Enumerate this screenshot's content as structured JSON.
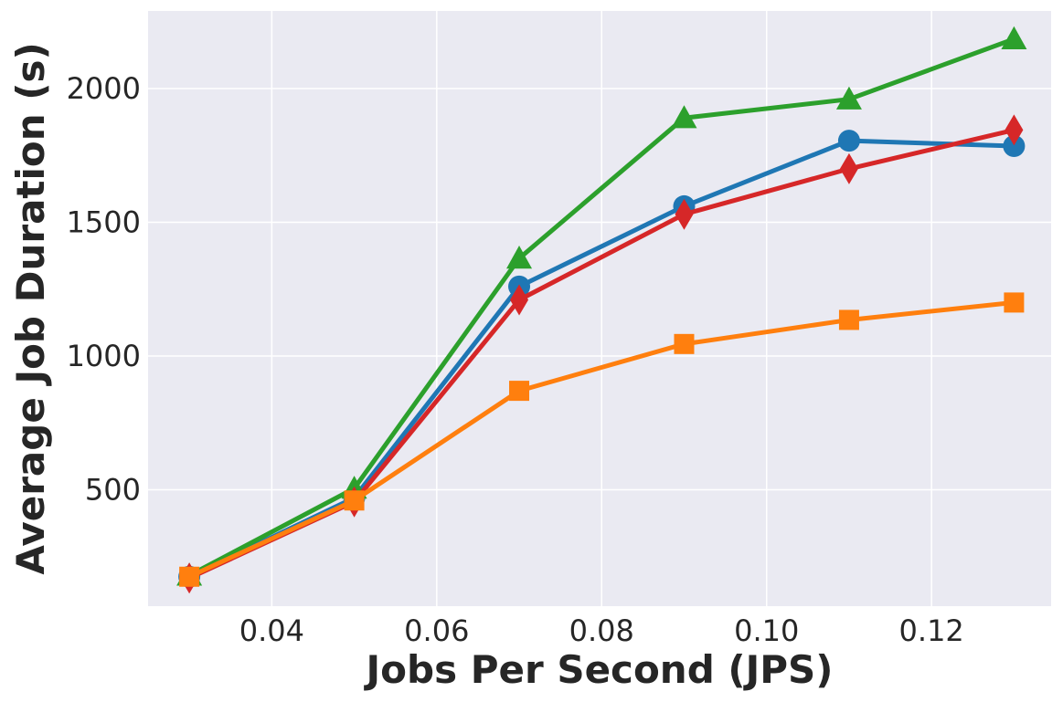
{
  "chart_data": {
    "type": "line",
    "title": "",
    "xlabel": "Jobs Per Second (JPS)",
    "ylabel": "Average Job Duration (s)",
    "xlim": [
      0.025,
      0.1345
    ],
    "ylim": [
      65,
      2290
    ],
    "xticks": [
      0.04,
      0.06,
      0.08,
      0.1,
      0.12
    ],
    "xtick_labels": [
      "0.04",
      "0.06",
      "0.08",
      "0.10",
      "0.12"
    ],
    "yticks": [
      500,
      1000,
      1500,
      2000
    ],
    "ytick_labels": [
      "500",
      "1000",
      "1500",
      "2000"
    ],
    "grid": true,
    "background": "#eaeaf2",
    "x": [
      0.03,
      0.05,
      0.07,
      0.09,
      0.11,
      0.13
    ],
    "series": [
      {
        "color": "#1f77b4",
        "marker": "circle",
        "values": [
          175,
          470,
          1260,
          1560,
          1805,
          1785
        ]
      },
      {
        "color": "#2ca02c",
        "marker": "triangle",
        "values": [
          180,
          505,
          1365,
          1890,
          1960,
          2185
        ]
      },
      {
        "color": "#d62728",
        "marker": "diamond",
        "values": [
          170,
          455,
          1210,
          1530,
          1700,
          1845
        ]
      },
      {
        "color": "#ff7f0e",
        "marker": "square",
        "values": [
          175,
          460,
          870,
          1045,
          1135,
          1200
        ]
      }
    ]
  }
}
